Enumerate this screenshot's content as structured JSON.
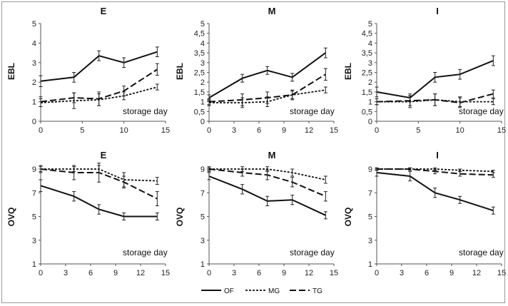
{
  "legend": [
    {
      "name": "OF",
      "color": "#111111",
      "dash": "solid"
    },
    {
      "name": "MG",
      "color": "#111111",
      "dash": "short-dash"
    },
    {
      "name": "TG",
      "color": "#111111",
      "dash": "long-dash"
    }
  ],
  "chart_data": [
    {
      "type": "line",
      "title": "E",
      "ylabel": "EBL",
      "xlabel": "storage day",
      "xlim": [
        0,
        15
      ],
      "ylim": [
        0,
        5
      ],
      "xticks": [
        0,
        5,
        10,
        15
      ],
      "xtick_labels": [
        "0",
        "5",
        "10",
        "15"
      ],
      "yticks": [
        0,
        1,
        2,
        3,
        4,
        5
      ],
      "ytick_labels": [
        "0",
        "1",
        "2",
        "3",
        "4",
        "5"
      ],
      "x": [
        0,
        4,
        7,
        10,
        14
      ],
      "series": [
        {
          "name": "OF",
          "values": [
            2.05,
            2.25,
            3.35,
            3.0,
            3.55
          ],
          "errors": [
            0.28,
            0.25,
            0.25,
            0.25,
            0.25
          ]
        },
        {
          "name": "MG",
          "values": [
            0.95,
            1.05,
            1.1,
            1.3,
            1.75
          ],
          "errors": [
            0.2,
            0.4,
            0.3,
            0.2,
            0.15
          ]
        },
        {
          "name": "TG",
          "values": [
            1.0,
            1.2,
            1.15,
            1.55,
            2.65
          ],
          "errors": [
            0.25,
            0.25,
            0.35,
            0.25,
            0.3
          ]
        }
      ]
    },
    {
      "type": "line",
      "title": "M",
      "ylabel": "EBL",
      "xlabel": "storage day",
      "xlim": [
        0,
        15
      ],
      "ylim": [
        0,
        5
      ],
      "xticks": [
        0,
        3,
        6,
        9,
        12,
        15
      ],
      "xtick_labels": [
        "0",
        "3",
        "6",
        "9",
        "12",
        "15"
      ],
      "yticks": [
        0,
        0.5,
        1,
        1.5,
        2,
        2.5,
        3,
        3.5,
        4,
        4.5,
        5
      ],
      "ytick_labels": [
        "0",
        "0,5",
        "1",
        "1,5",
        "2",
        "2,5",
        "3",
        "3,5",
        "4",
        "4,5",
        "5"
      ],
      "x": [
        0,
        4,
        7,
        10,
        14
      ],
      "series": [
        {
          "name": "OF",
          "values": [
            1.2,
            2.2,
            2.6,
            2.25,
            3.5
          ],
          "errors": [
            0.15,
            0.2,
            0.2,
            0.2,
            0.25
          ]
        },
        {
          "name": "MG",
          "values": [
            0.95,
            0.95,
            1.0,
            1.35,
            1.6
          ],
          "errors": [
            0.15,
            0.25,
            0.25,
            0.2,
            0.15
          ]
        },
        {
          "name": "TG",
          "values": [
            1.0,
            1.1,
            1.2,
            1.35,
            2.4
          ],
          "errors": [
            0.15,
            0.3,
            0.3,
            0.25,
            0.3
          ]
        }
      ]
    },
    {
      "type": "line",
      "title": "I",
      "ylabel": "EBL",
      "xlabel": "storage day",
      "xlim": [
        0,
        15
      ],
      "ylim": [
        0,
        5
      ],
      "xticks": [
        0,
        5,
        10,
        15
      ],
      "xtick_labels": [
        "0",
        "5",
        "10",
        "15"
      ],
      "yticks": [
        0,
        0.5,
        1,
        1.5,
        2,
        2.5,
        3,
        3.5,
        4,
        4.5,
        5
      ],
      "ytick_labels": [
        "0",
        "0,5",
        "1",
        "1,5",
        "2",
        "2,5",
        "3",
        "3,5",
        "4",
        "4,5",
        "5"
      ],
      "x": [
        0,
        4,
        7,
        10,
        14
      ],
      "series": [
        {
          "name": "OF",
          "values": [
            1.5,
            1.2,
            2.25,
            2.4,
            3.1
          ],
          "errors": [
            0.25,
            0.2,
            0.25,
            0.25,
            0.25
          ]
        },
        {
          "name": "MG",
          "values": [
            1.0,
            1.0,
            1.1,
            1.0,
            1.0
          ],
          "errors": [
            0.15,
            0.3,
            0.3,
            0.25,
            0.15
          ]
        },
        {
          "name": "TG",
          "values": [
            1.0,
            1.05,
            1.1,
            0.95,
            1.4
          ],
          "errors": [
            0.15,
            0.25,
            0.3,
            0.25,
            0.2
          ]
        }
      ]
    },
    {
      "type": "line",
      "title": "E",
      "ylabel": "OVQ",
      "xlabel": "storage day",
      "xlim": [
        0,
        15
      ],
      "ylim": [
        1,
        9
      ],
      "xticks": [
        0,
        3,
        6,
        9,
        12,
        15
      ],
      "xtick_labels": [
        "0",
        "3",
        "6",
        "9",
        "12",
        "15"
      ],
      "yticks": [
        1,
        3,
        5,
        7,
        9
      ],
      "ytick_labels": [
        "1",
        "3",
        "5",
        "7",
        "9"
      ],
      "x": [
        0,
        4,
        7,
        10,
        14
      ],
      "series": [
        {
          "name": "OF",
          "values": [
            7.6,
            6.7,
            5.6,
            5.0,
            5.0
          ],
          "errors": [
            0.5,
            0.4,
            0.4,
            0.3,
            0.3
          ]
        },
        {
          "name": "MG",
          "values": [
            9.0,
            9.0,
            9.0,
            8.1,
            8.0
          ],
          "errors": [
            0.2,
            0.2,
            0.3,
            0.6,
            0.3
          ]
        },
        {
          "name": "TG",
          "values": [
            9.0,
            8.7,
            8.7,
            7.9,
            6.5
          ],
          "errors": [
            0.3,
            0.6,
            0.8,
            0.5,
            0.6
          ]
        }
      ]
    },
    {
      "type": "line",
      "title": "M",
      "ylabel": "OVQ",
      "xlabel": "storage day",
      "xlim": [
        0,
        15
      ],
      "ylim": [
        1,
        9
      ],
      "xticks": [
        0,
        3,
        6,
        9,
        12,
        15
      ],
      "xtick_labels": [
        "0",
        "3",
        "6",
        "9",
        "12",
        "15"
      ],
      "yticks": [
        1,
        3,
        5,
        7,
        9
      ],
      "ytick_labels": [
        "1",
        "3",
        "5",
        "7",
        "9"
      ],
      "x": [
        0,
        4,
        7,
        10,
        14
      ],
      "series": [
        {
          "name": "OF",
          "values": [
            8.4,
            7.3,
            6.3,
            6.4,
            5.1
          ],
          "errors": [
            0.3,
            0.4,
            0.4,
            0.4,
            0.3
          ]
        },
        {
          "name": "MG",
          "values": [
            9.0,
            9.0,
            9.0,
            8.7,
            8.1
          ],
          "errors": [
            0.1,
            0.2,
            0.2,
            0.3,
            0.3
          ]
        },
        {
          "name": "TG",
          "values": [
            9.0,
            8.7,
            8.5,
            7.9,
            6.7
          ],
          "errors": [
            0.2,
            0.3,
            0.4,
            0.4,
            0.4
          ]
        }
      ]
    },
    {
      "type": "line",
      "title": "I",
      "ylabel": "OVQ",
      "xlabel": "storage day",
      "xlim": [
        0,
        15
      ],
      "ylim": [
        1,
        9
      ],
      "xticks": [
        0,
        3,
        6,
        9,
        12,
        15
      ],
      "xtick_labels": [
        "0",
        "3",
        "6",
        "9",
        "12",
        "15"
      ],
      "yticks": [
        1,
        3,
        5,
        7,
        9
      ],
      "ytick_labels": [
        "1",
        "3",
        "5",
        "7",
        "9"
      ],
      "x": [
        0,
        4,
        7,
        10,
        14
      ],
      "series": [
        {
          "name": "OF",
          "values": [
            8.7,
            8.4,
            7.0,
            6.4,
            5.5
          ],
          "errors": [
            0.3,
            0.4,
            0.4,
            0.3,
            0.3
          ]
        },
        {
          "name": "MG",
          "values": [
            9.0,
            9.0,
            9.0,
            8.9,
            8.8
          ],
          "errors": [
            0.1,
            0.1,
            0.1,
            0.1,
            0.1
          ]
        },
        {
          "name": "TG",
          "values": [
            9.0,
            9.0,
            8.8,
            8.6,
            8.5
          ],
          "errors": [
            0.1,
            0.1,
            0.2,
            0.2,
            0.2
          ]
        }
      ]
    }
  ]
}
